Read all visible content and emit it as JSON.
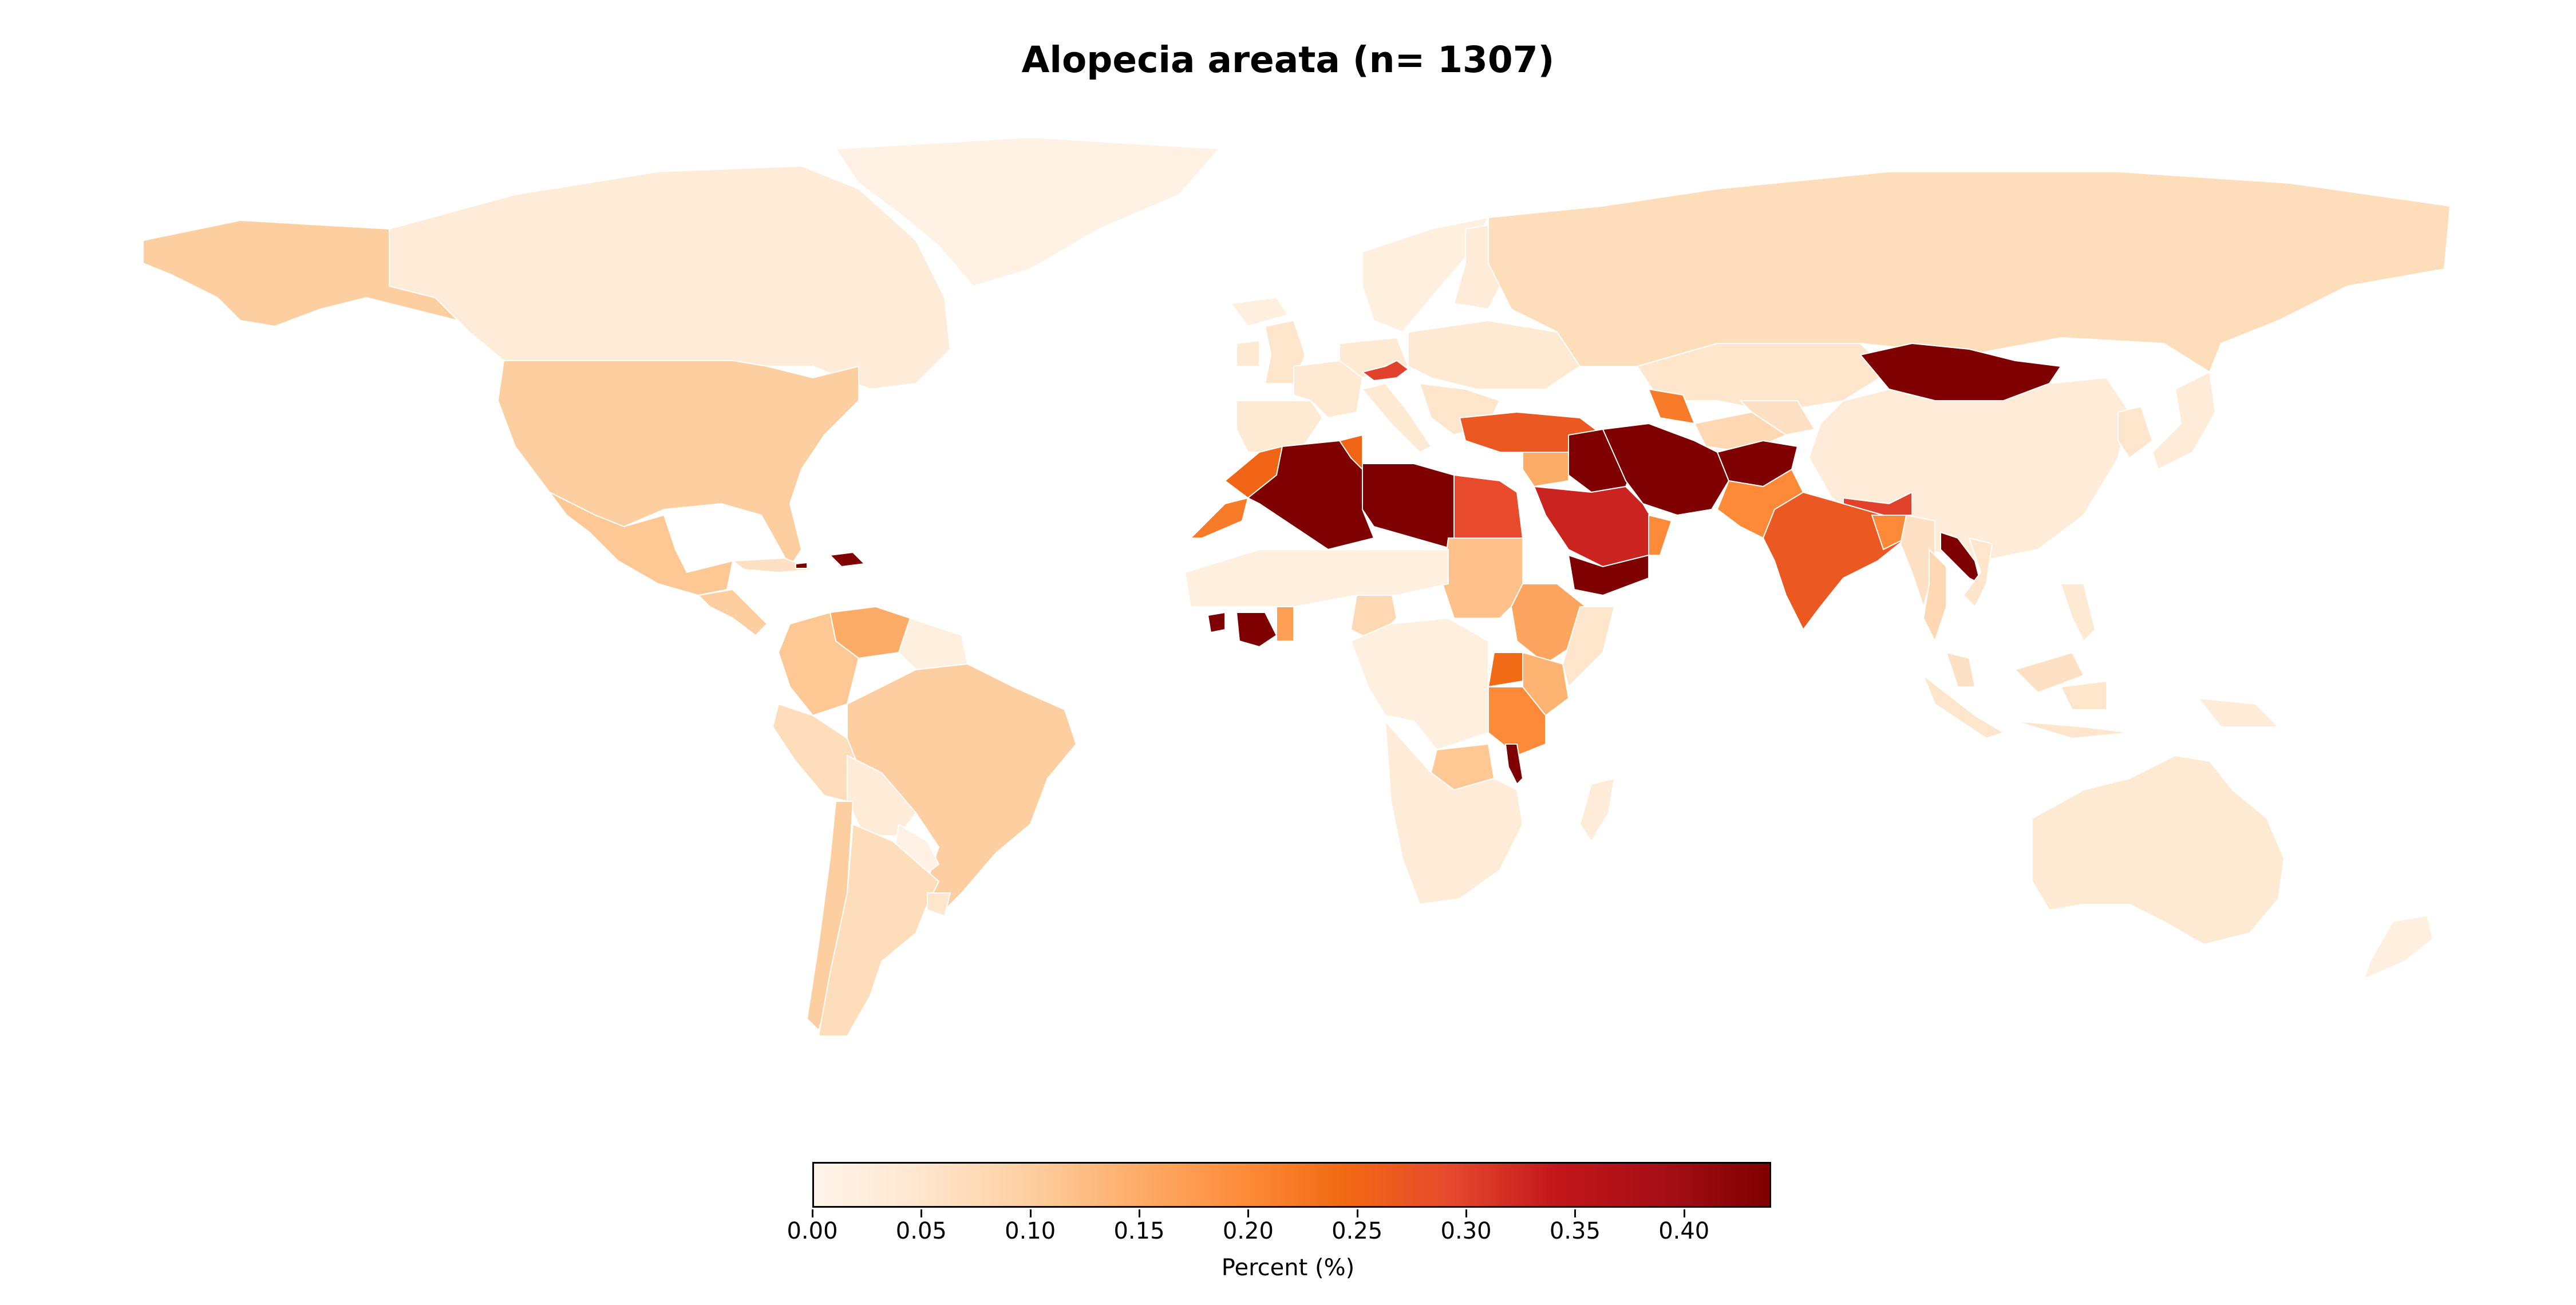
{
  "title": "Alopecia areata (n= 1307)",
  "colorbar": {
    "label": "Percent (%)",
    "min": 0.0,
    "max": 0.44,
    "ticks": [
      "0.00",
      "0.05",
      "0.10",
      "0.15",
      "0.20",
      "0.25",
      "0.30",
      "0.35",
      "0.40"
    ],
    "colormap": [
      "#fff5eb",
      "#fee6ce",
      "#fdd0a2",
      "#fdae6b",
      "#fd8d3c",
      "#f16913",
      "#e6492e",
      "#c2161b",
      "#a50f15",
      "#7f0000"
    ]
  },
  "regions": [
    {
      "name": "Greenland",
      "value": 0.01
    },
    {
      "name": "Canada",
      "value": 0.03
    },
    {
      "name": "Alaska",
      "value": 0.1
    },
    {
      "name": "United States",
      "value": 0.1
    },
    {
      "name": "Mexico",
      "value": 0.11
    },
    {
      "name": "Central America",
      "value": 0.1
    },
    {
      "name": "Cuba",
      "value": 0.06
    },
    {
      "name": "Hispaniola",
      "value": 0.44
    },
    {
      "name": "Venezuela",
      "value": 0.15
    },
    {
      "name": "Colombia",
      "value": 0.11
    },
    {
      "name": "Guianas",
      "value": 0.02
    },
    {
      "name": "Peru",
      "value": 0.07
    },
    {
      "name": "Brazil",
      "value": 0.1
    },
    {
      "name": "Bolivia",
      "value": 0.03
    },
    {
      "name": "Paraguay",
      "value": 0.01
    },
    {
      "name": "Chile",
      "value": 0.1
    },
    {
      "name": "Argentina",
      "value": 0.07
    },
    {
      "name": "Uruguay",
      "value": 0.05
    },
    {
      "name": "Iceland",
      "value": 0.02
    },
    {
      "name": "United Kingdom",
      "value": 0.05
    },
    {
      "name": "Ireland",
      "value": 0.04
    },
    {
      "name": "Iberia",
      "value": 0.04
    },
    {
      "name": "France",
      "value": 0.04
    },
    {
      "name": "Western Europe",
      "value": 0.04
    },
    {
      "name": "Scandinavia",
      "value": 0.02
    },
    {
      "name": "Finland",
      "value": 0.03
    },
    {
      "name": "Austria",
      "value": 0.3
    },
    {
      "name": "Italy",
      "value": 0.04
    },
    {
      "name": "Eastern Europe",
      "value": 0.04
    },
    {
      "name": "Balkans",
      "value": 0.05
    },
    {
      "name": "Russia",
      "value": 0.07
    },
    {
      "name": "Kazakhstan",
      "value": 0.05
    },
    {
      "name": "Mongolia",
      "value": 0.44
    },
    {
      "name": "China",
      "value": 0.03
    },
    {
      "name": "Japan",
      "value": 0.03
    },
    {
      "name": "Korea",
      "value": 0.05
    },
    {
      "name": "Turkey",
      "value": 0.27
    },
    {
      "name": "Syria",
      "value": 0.15
    },
    {
      "name": "Caucasus",
      "value": 0.22
    },
    {
      "name": "Turkmenistan",
      "value": 0.08
    },
    {
      "name": "Uzbekistan",
      "value": 0.06
    },
    {
      "name": "Iraq",
      "value": 0.44
    },
    {
      "name": "Iran",
      "value": 0.44
    },
    {
      "name": "Afghanistan",
      "value": 0.44
    },
    {
      "name": "Pakistan",
      "value": 0.2
    },
    {
      "name": "India",
      "value": 0.27
    },
    {
      "name": "Nepal",
      "value": 0.3
    },
    {
      "name": "Bangladesh",
      "value": 0.2
    },
    {
      "name": "Myanmar",
      "value": 0.06
    },
    {
      "name": "Thailand",
      "value": 0.08
    },
    {
      "name": "Laos",
      "value": 0.44
    },
    {
      "name": "Vietnam",
      "value": 0.05
    },
    {
      "name": "Malaysia",
      "value": 0.06
    },
    {
      "name": "Indonesia",
      "value": 0.05
    },
    {
      "name": "Philippines",
      "value": 0.04
    },
    {
      "name": "Papua New Guinea",
      "value": 0.03
    },
    {
      "name": "Australia",
      "value": 0.04
    },
    {
      "name": "New Zealand",
      "value": 0.02
    },
    {
      "name": "Saudi Arabia",
      "value": 0.33
    },
    {
      "name": "Yemen",
      "value": 0.44
    },
    {
      "name": "Oman",
      "value": 0.2
    },
    {
      "name": "Morocco",
      "value": 0.25
    },
    {
      "name": "Western Sahara",
      "value": 0.22
    },
    {
      "name": "Algeria",
      "value": 0.44
    },
    {
      "name": "Tunisia",
      "value": 0.25
    },
    {
      "name": "Libya",
      "value": 0.44
    },
    {
      "name": "Egypt",
      "value": 0.29
    },
    {
      "name": "Sudan",
      "value": 0.12
    },
    {
      "name": "Ethiopia",
      "value": 0.16
    },
    {
      "name": "Somalia",
      "value": 0.05
    },
    {
      "name": "Kenya",
      "value": 0.14
    },
    {
      "name": "Uganda",
      "value": 0.24
    },
    {
      "name": "Tanzania",
      "value": 0.2
    },
    {
      "name": "Zambia",
      "value": 0.11
    },
    {
      "name": "Malawi",
      "value": 0.44
    },
    {
      "name": "Madagascar",
      "value": 0.03
    },
    {
      "name": "Guinea",
      "value": 0.44
    },
    {
      "name": "Cote d'Ivoire",
      "value": 0.44
    },
    {
      "name": "Ghana",
      "value": 0.17
    },
    {
      "name": "Nigeria",
      "value": 0.08
    },
    {
      "name": "Sahel",
      "value": 0.02
    },
    {
      "name": "Central Africa",
      "value": 0.02
    },
    {
      "name": "Southern Africa",
      "value": 0.03
    }
  ]
}
